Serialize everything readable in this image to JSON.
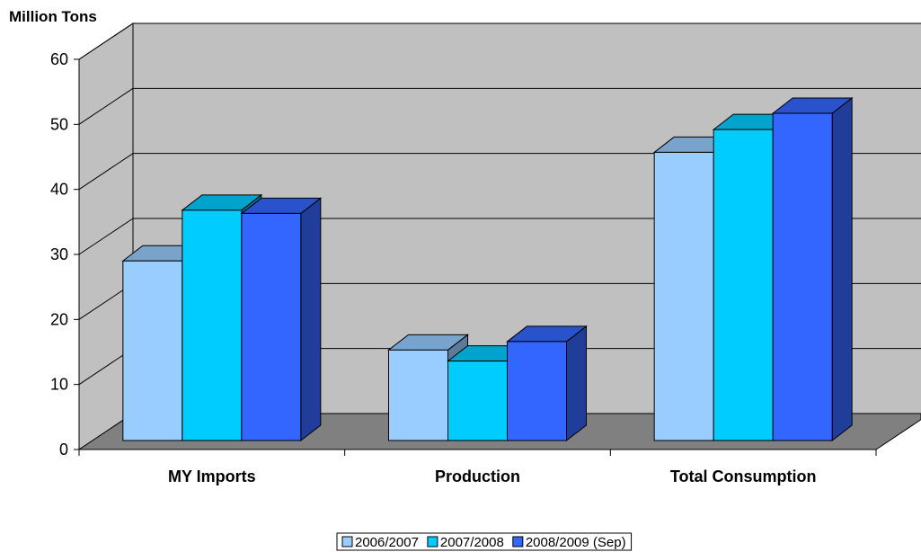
{
  "chart_data": {
    "type": "bar",
    "ylabel": "Million Tons",
    "ylim": [
      0,
      60
    ],
    "yticks": [
      0,
      10,
      20,
      30,
      40,
      50,
      60
    ],
    "categories": [
      "MY Imports",
      "Production",
      "Total Consumption"
    ],
    "series": [
      {
        "name": "2006/2007",
        "values": [
          29,
          15.3,
          45.7
        ],
        "colors": {
          "front": "#99ccff",
          "top": "#7aa3cc",
          "side": "#5c7a99"
        }
      },
      {
        "name": "2007/2008",
        "values": [
          36.8,
          13.6,
          49.2
        ],
        "colors": {
          "front": "#00ccff",
          "top": "#00a3cc",
          "side": "#007a99"
        }
      },
      {
        "name": "2008/2009 (Sep)",
        "values": [
          36.3,
          16.6,
          51.7
        ],
        "colors": {
          "front": "#3366ff",
          "top": "#2952cc",
          "side": "#1f3d99"
        }
      }
    ],
    "grid": true,
    "legend_position": "bottom"
  }
}
